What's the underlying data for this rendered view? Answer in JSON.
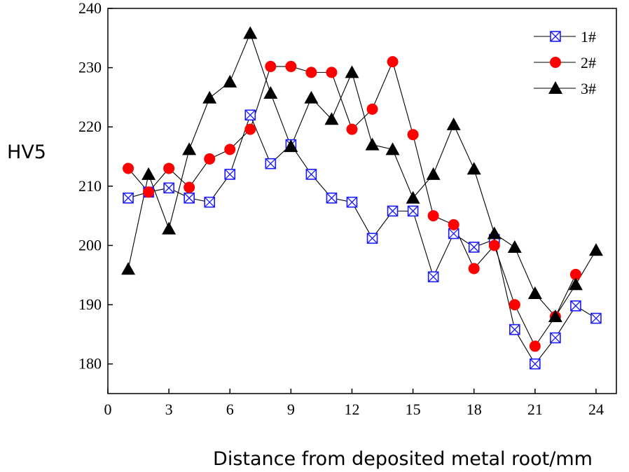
{
  "chart_data": {
    "type": "line",
    "title": "",
    "xlabel": "Distance from deposited metal root/mm",
    "ylabel": "HV5",
    "xlim": [
      0,
      25
    ],
    "ylim": [
      175,
      240
    ],
    "xticks": [
      0,
      3,
      6,
      9,
      12,
      15,
      18,
      21,
      24
    ],
    "yticks": [
      180,
      190,
      200,
      210,
      220,
      230,
      240
    ],
    "grid": false,
    "legend_position": "top-right",
    "x": [
      1,
      2,
      3,
      4,
      5,
      6,
      7,
      8,
      9,
      10,
      11,
      12,
      13,
      14,
      15,
      16,
      17,
      18,
      19,
      20,
      21,
      22,
      23,
      24
    ],
    "series": [
      {
        "name": "1#",
        "marker": "square-x",
        "color": "#1a1aff",
        "values": [
          208,
          209,
          209.7,
          208,
          207.3,
          212,
          222,
          213.8,
          217,
          212,
          208,
          207.3,
          201.2,
          205.8,
          205.8,
          194.7,
          202,
          199.7,
          201,
          185.8,
          180,
          184.4,
          189.8,
          187.7
        ]
      },
      {
        "name": "2#",
        "marker": "circle",
        "color": "#ff0000",
        "values": [
          213,
          209,
          213,
          209.8,
          214.6,
          216.2,
          219.6,
          230.2,
          230.2,
          229.2,
          229.2,
          219.6,
          223,
          231,
          218.7,
          205,
          203.5,
          196.1,
          200,
          190,
          183,
          188,
          195.1,
          null
        ]
      },
      {
        "name": "3#",
        "marker": "triangle",
        "color": "#000000",
        "values": [
          196,
          212,
          202.8,
          216.2,
          224.9,
          227.6,
          235.8,
          225.7,
          216.7,
          224.9,
          221.3,
          229.2,
          217,
          216.2,
          208,
          212,
          220.4,
          212.9,
          202,
          199.7,
          191.9,
          188,
          193.4,
          199.2
        ]
      }
    ]
  }
}
